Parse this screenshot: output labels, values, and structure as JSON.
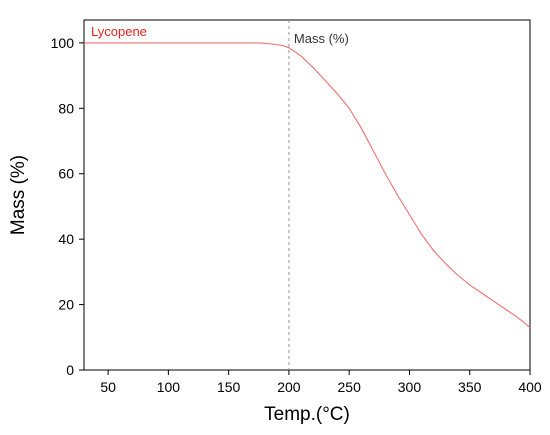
{
  "chart_data": {
    "type": "line",
    "title": "",
    "xlabel": "Temp.(°C)",
    "ylabel": "Mass (%)",
    "xlim": [
      30,
      400
    ],
    "ylim": [
      0,
      107
    ],
    "xticks": [
      50,
      100,
      150,
      200,
      250,
      300,
      350,
      400
    ],
    "yticks": [
      0,
      20,
      40,
      60,
      80,
      100
    ],
    "grid": false,
    "legend": "top-left",
    "series": [
      {
        "name": "Lycopene",
        "color": "#f07070",
        "x": [
          30,
          60,
          100,
          150,
          175,
          185,
          195,
          200,
          210,
          220,
          230,
          240,
          250,
          260,
          270,
          280,
          290,
          300,
          310,
          320,
          330,
          340,
          350,
          360,
          370,
          380,
          390,
          400
        ],
        "y": [
          100,
          100,
          100,
          100,
          100,
          99.7,
          99.2,
          98.5,
          96,
          92.5,
          88.5,
          84.5,
          80,
          74,
          67,
          60,
          53.5,
          47.5,
          41.5,
          36.5,
          32.5,
          29,
          26,
          23.5,
          21,
          18.5,
          16,
          13
        ]
      }
    ],
    "annotations": [
      {
        "text": "Mass (%)",
        "x": 200,
        "line": "vertical-dashed",
        "color": "#333333"
      }
    ],
    "legend_color": "#e8231c"
  }
}
